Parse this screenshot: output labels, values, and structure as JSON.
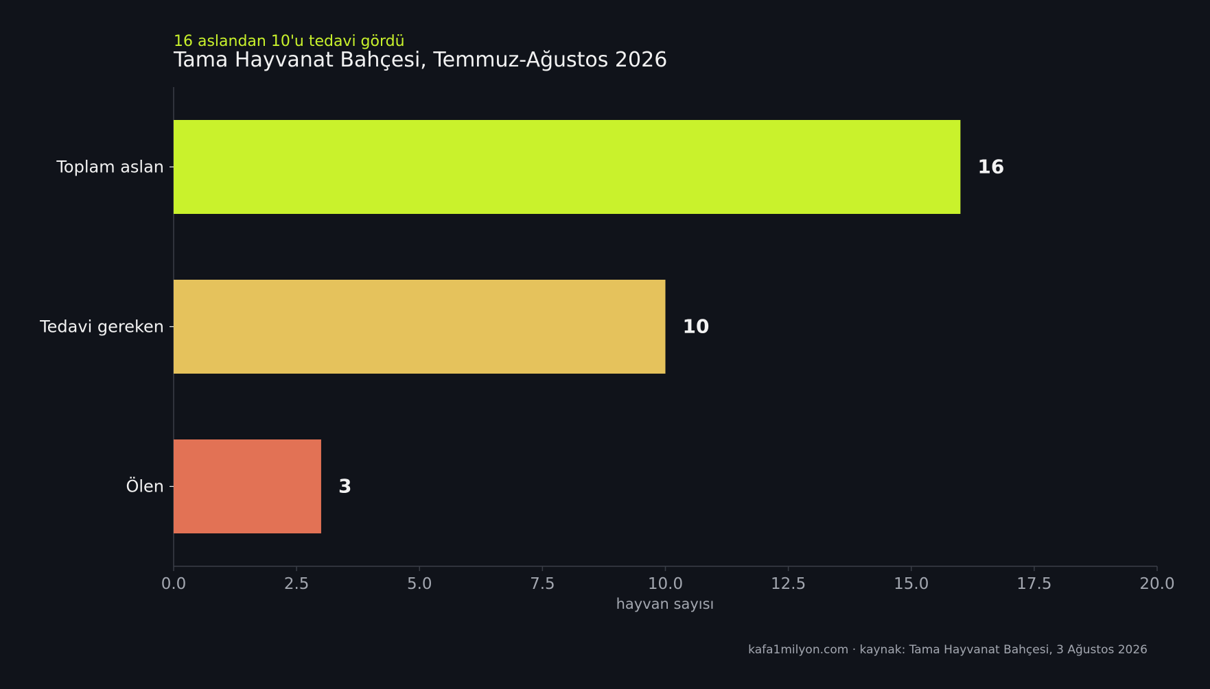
{
  "chart_data": {
    "type": "bar",
    "orientation": "horizontal",
    "subtitle": "16 aslandan 10'u tedavi gördü",
    "title": "Tama Hayvanat Bahçesi, Temmuz-Ağustos 2026",
    "categories": [
      "Toplam aslan",
      "Tedavi gereken",
      "Ölen"
    ],
    "values": [
      16,
      10,
      3
    ],
    "value_labels": [
      "16",
      "10",
      "3"
    ],
    "bar_colors": [
      "#c9f22c",
      "#e5c25c",
      "#e27255"
    ],
    "xlabel": "hayvan sayısı",
    "ylabel": "",
    "xlim": [
      0,
      20
    ],
    "xticks": [
      0,
      2.5,
      5,
      7.5,
      10,
      12.5,
      15,
      17.5,
      20
    ],
    "xtick_labels": [
      "0.0",
      "2.5",
      "5.0",
      "7.5",
      "10.0",
      "12.5",
      "15.0",
      "17.5",
      "20.0"
    ],
    "grid": false,
    "legend": "none"
  },
  "footer": "kafa1milyon.com  ·  kaynak: Tama Hayvanat Bahçesi, 3 Ağustos 2026",
  "colors": {
    "background": "#10131a",
    "accent": "#c9f22c",
    "text": "#f2f2f2",
    "muted": "#a3a7b0",
    "axis": "#3a3e47"
  }
}
